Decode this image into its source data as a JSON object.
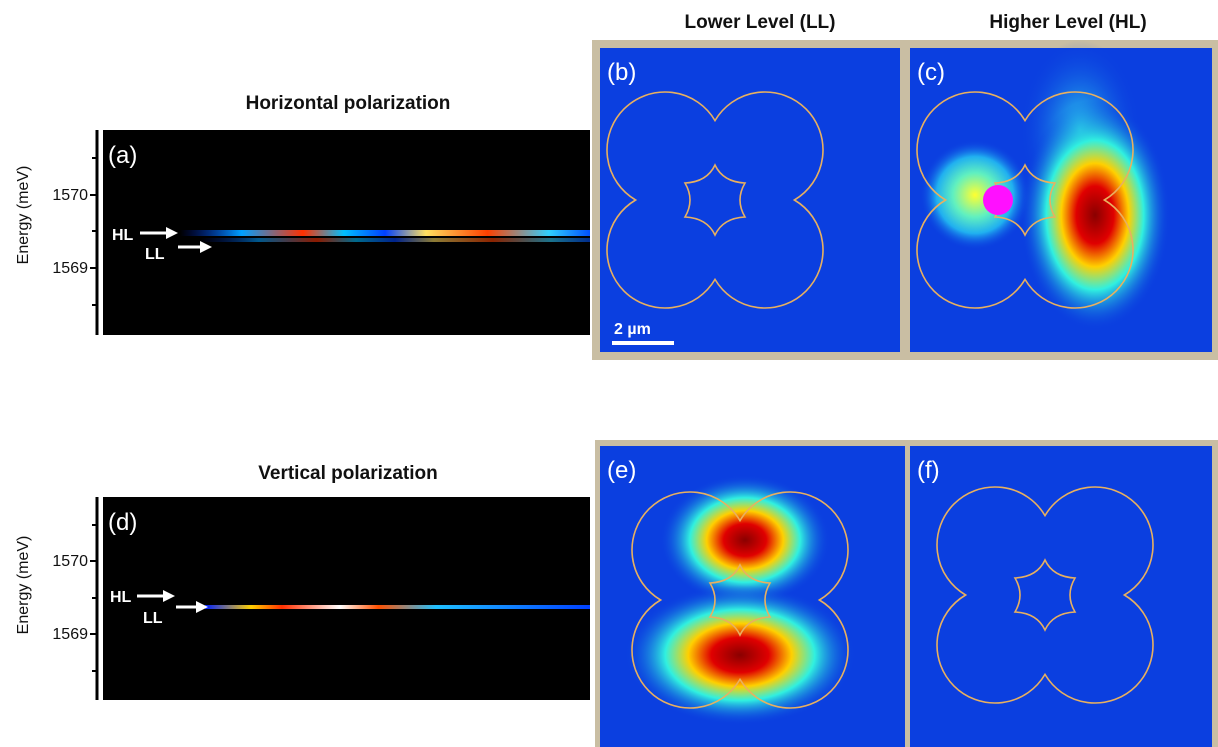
{
  "header": {
    "lower_level": "Lower Level (LL)",
    "higher_level": "Higher Level (HL)"
  },
  "rows": [
    {
      "title": "Horizontal polarization",
      "spectrum": {
        "label": "(a)",
        "y_axis_label": "Energy (meV)",
        "ticks": [
          1570,
          1569
        ],
        "arrows": [
          "HL",
          "LL"
        ]
      },
      "maps": [
        {
          "label": "(b)",
          "scale_bar": "2 µm"
        },
        {
          "label": "(c)"
        }
      ]
    },
    {
      "title": "Vertical polarization",
      "spectrum": {
        "label": "(d)",
        "y_axis_label": "Energy (meV)",
        "ticks": [
          1570,
          1569
        ],
        "arrows": [
          "HL",
          "LL"
        ]
      },
      "maps": [
        {
          "label": "(e)"
        },
        {
          "label": "(f)"
        }
      ]
    }
  ]
}
